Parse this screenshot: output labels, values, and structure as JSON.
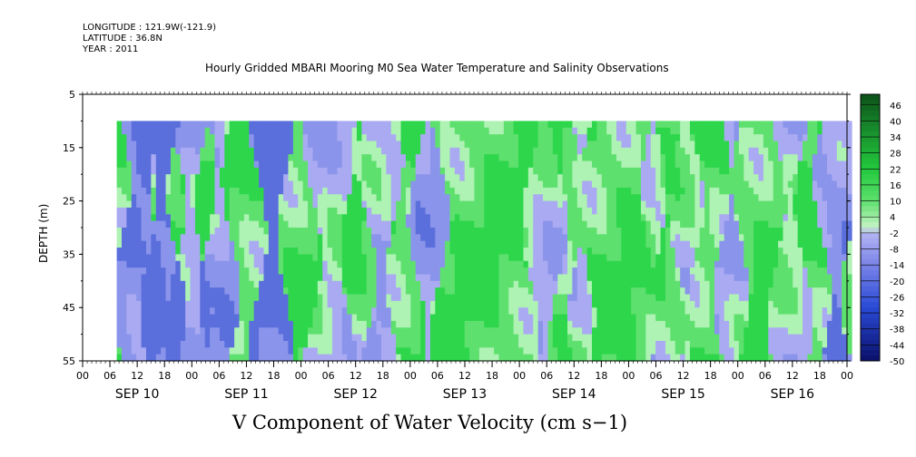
{
  "header": {
    "longitude": "LONGITUDE : 121.9W(-121.9)",
    "latitude": "LATITUDE : 36.8N",
    "year": "YEAR : 2011"
  },
  "chart_data": {
    "type": "heatmap",
    "title": "Hourly Gridded MBARI Mooring M0 Sea Water Temperature and Salinity Observations",
    "xlabel": "V Component of Water Velocity (cm s−1)",
    "ylabel": "DEPTH (m)",
    "ylim": [
      5,
      55
    ],
    "y_inverted": true,
    "y_ticks": [
      5,
      15,
      25,
      35,
      45,
      55
    ],
    "x_range_hours": [
      0,
      168
    ],
    "x_hour_ticks": [
      "00",
      "06",
      "12",
      "18",
      "00",
      "06",
      "12",
      "18",
      "00",
      "06",
      "12",
      "18",
      "00",
      "06",
      "12",
      "18",
      "00",
      "06",
      "12",
      "18",
      "00",
      "06",
      "12",
      "18",
      "00",
      "06",
      "12",
      "18",
      "00"
    ],
    "date_labels": [
      "SEP 10",
      "SEP 11",
      "SEP 12",
      "SEP 13",
      "SEP 14",
      "SEP 15",
      "SEP 16"
    ],
    "data_extent": {
      "x_hours": [
        7.5,
        169
      ],
      "depth_m": [
        10,
        55
      ]
    },
    "colorbar": {
      "labels": [
        "46",
        "40",
        "34",
        "28",
        "22",
        "16",
        "10",
        "4",
        "-2",
        "-8",
        "-14",
        "-20",
        "-26",
        "-32",
        "-38",
        "-44",
        "-50"
      ],
      "range": [
        -50,
        50
      ],
      "colors": {
        "strong_positive": "#1a6e2a",
        "positive": "#24cc44",
        "weak_positive": "#aef2b4",
        "weak_negative": "#aaaaf2",
        "negative": "#5a6edc",
        "strong_negative": "#0c1a8a"
      }
    },
    "grid": false
  }
}
